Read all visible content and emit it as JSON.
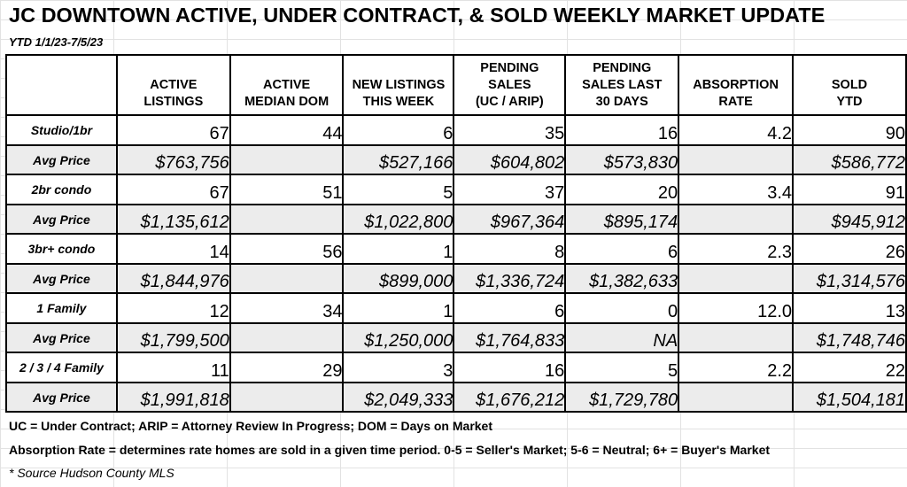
{
  "title": "JC DOWNTOWN ACTIVE, UNDER CONTRACT, & SOLD WEEKLY MARKET UPDATE",
  "subtitle": "YTD 1/1/23-7/5/23",
  "columns": [
    {
      "line1": "",
      "line2": "ACTIVE",
      "line3": "LISTINGS"
    },
    {
      "line1": "",
      "line2": "ACTIVE",
      "line3": "MEDIAN DOM"
    },
    {
      "line1": "",
      "line2": "NEW LISTINGS",
      "line3": "THIS WEEK"
    },
    {
      "line1": "PENDING",
      "line2": "SALES",
      "line3": "(UC / ARIP)"
    },
    {
      "line1": "PENDING",
      "line2": "SALES LAST",
      "line3": "30 DAYS"
    },
    {
      "line1": "",
      "line2": "ABSORPTION",
      "line3": "RATE"
    },
    {
      "line1": "",
      "line2": "SOLD",
      "line3": "YTD"
    }
  ],
  "rows": [
    {
      "label": "Studio/1br",
      "counts": [
        "67",
        "44",
        "6",
        "35",
        "16",
        "4.2",
        "90"
      ],
      "price_label": "Avg Price",
      "prices": [
        "$763,756",
        "",
        "$527,166",
        "$604,802",
        "$573,830",
        "",
        "$586,772"
      ]
    },
    {
      "label": "2br condo",
      "counts": [
        "67",
        "51",
        "5",
        "37",
        "20",
        "3.4",
        "91"
      ],
      "price_label": "Avg Price",
      "prices": [
        "$1,135,612",
        "",
        "$1,022,800",
        "$967,364",
        "$895,174",
        "",
        "$945,912"
      ]
    },
    {
      "label": "3br+ condo",
      "counts": [
        "14",
        "56",
        "1",
        "8",
        "6",
        "2.3",
        "26"
      ],
      "price_label": "Avg Price",
      "prices": [
        "$1,844,976",
        "",
        "$899,000",
        "$1,336,724",
        "$1,382,633",
        "",
        "$1,314,576"
      ]
    },
    {
      "label": "1 Family",
      "counts": [
        "12",
        "34",
        "1",
        "6",
        "0",
        "12.0",
        "13"
      ],
      "price_label": "Avg Price",
      "prices": [
        "$1,799,500",
        "",
        "$1,250,000",
        "$1,764,833",
        "NA",
        "",
        "$1,748,746"
      ]
    },
    {
      "label": "2 / 3 / 4 Family",
      "counts": [
        "11",
        "29",
        "3",
        "16",
        "5",
        "2.2",
        "22"
      ],
      "price_label": "Avg Price",
      "prices": [
        "$1,991,818",
        "",
        "$2,049,333",
        "$1,676,212",
        "$1,729,780",
        "",
        "$1,504,181"
      ]
    }
  ],
  "notes": {
    "definitions": "UC = Under Contract; ARIP = Attorney Review In Progress; DOM = Days on Market",
    "absorption": "Absorption Rate = determines rate homes are sold in a given time period.  0-5 = Seller's Market; 5-6 = Neutral; 6+ = Buyer's Market",
    "source": "* Source Hudson County MLS"
  }
}
